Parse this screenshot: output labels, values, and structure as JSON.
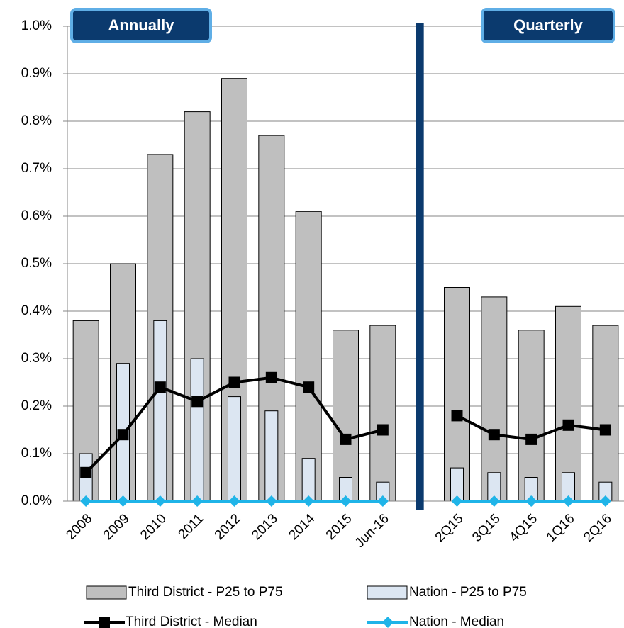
{
  "chart_data": {
    "type": "bar",
    "categories": [
      "2008",
      "2009",
      "2010",
      "2011",
      "2012",
      "2013",
      "2014",
      "2015",
      "Jun-16",
      null,
      "2Q15",
      "3Q15",
      "4Q15",
      "1Q16",
      "2Q16"
    ],
    "series": [
      {
        "name": "Third District - P25 to P75",
        "type": "bar",
        "color": "#bfbfbf",
        "values": [
          0.38,
          0.5,
          0.73,
          0.82,
          0.89,
          0.77,
          0.61,
          0.36,
          0.37,
          null,
          0.45,
          0.43,
          0.36,
          0.41,
          0.37
        ]
      },
      {
        "name": "Nation - P25 to P75",
        "type": "bar",
        "color": "#dce6f2",
        "values": [
          0.1,
          0.29,
          0.38,
          0.3,
          0.22,
          0.19,
          0.09,
          0.05,
          0.04,
          null,
          0.07,
          0.06,
          0.05,
          0.06,
          0.04
        ]
      },
      {
        "name": "Third District - Median",
        "type": "line",
        "marker": "square",
        "color": "#000000",
        "values": [
          0.06,
          0.14,
          0.24,
          0.21,
          0.25,
          0.26,
          0.24,
          0.13,
          0.15,
          null,
          0.18,
          0.14,
          0.13,
          0.16,
          0.15
        ]
      },
      {
        "name": "Nation - Median",
        "type": "line",
        "marker": "diamond",
        "color": "#1fb4e8",
        "values": [
          0,
          0,
          0,
          0,
          0,
          0,
          0,
          0,
          0,
          null,
          0,
          0,
          0,
          0,
          0
        ]
      }
    ],
    "ylim": [
      0,
      1.0
    ],
    "yticks": [
      {
        "value": 0,
        "label": "0.0%"
      },
      {
        "value": 0.1,
        "label": "0.1%"
      },
      {
        "value": 0.2,
        "label": "0.2%"
      },
      {
        "value": 0.3,
        "label": "0.3%"
      },
      {
        "value": 0.4,
        "label": "0.4%"
      },
      {
        "value": 0.5,
        "label": "0.5%"
      },
      {
        "value": 0.6,
        "label": "0.6%"
      },
      {
        "value": 0.7,
        "label": "0.7%"
      },
      {
        "value": 0.8,
        "label": "0.8%"
      },
      {
        "value": 0.9,
        "label": "0.9%"
      },
      {
        "value": 1.0,
        "label": "1.0%"
      }
    ],
    "grid": true,
    "annotations": [
      "Annually",
      "Quarterly"
    ]
  }
}
